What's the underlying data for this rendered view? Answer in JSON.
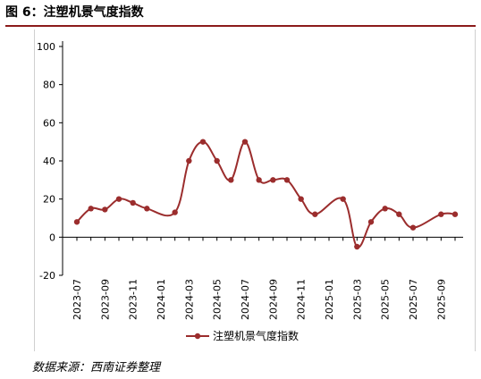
{
  "figure": {
    "title": "图 6：注塑机景气度指数",
    "source": "数据来源：西南证券整理"
  },
  "colors": {
    "series": "#9b2d2d",
    "title_rule": "#8b1a1a",
    "axis": "#000000"
  },
  "chart_data": {
    "type": "line",
    "title": "",
    "xlabel": "",
    "ylabel": "",
    "ylim": [
      -20,
      100
    ],
    "yticks": [
      -20,
      0,
      20,
      40,
      60,
      80,
      100
    ],
    "grid": false,
    "legend_position": "bottom",
    "x": [
      "2023-07",
      "2023-08",
      "2023-09",
      "2023-10",
      "2023-11",
      "2023-12",
      "2024-01",
      "2024-02",
      "2024-03",
      "2024-04",
      "2024-05",
      "2024-06",
      "2024-07",
      "2024-08",
      "2024-09",
      "2024-10",
      "2024-11",
      "2024-12",
      "2025-01",
      "2025-02",
      "2025-03",
      "2025-04",
      "2025-05",
      "2025-06",
      "2025-07",
      "2025-08",
      "2025-09",
      "2025-10"
    ],
    "xtick_labels": [
      "2023-07",
      "2023-09",
      "2023-11",
      "2024-01",
      "2024-03",
      "2024-05",
      "2024-07",
      "2024-09",
      "2024-11",
      "2025-01",
      "2025-03",
      "2025-05",
      "2025-07",
      "2025-09"
    ],
    "series": [
      {
        "name": "注塑机景气度指数",
        "values": [
          8,
          15,
          14.5,
          20,
          18,
          15,
          null,
          13,
          40,
          50,
          40,
          30,
          50,
          30,
          30,
          30,
          20,
          12,
          null,
          20,
          -5,
          8,
          15,
          12,
          5,
          null,
          12,
          12
        ]
      }
    ]
  }
}
